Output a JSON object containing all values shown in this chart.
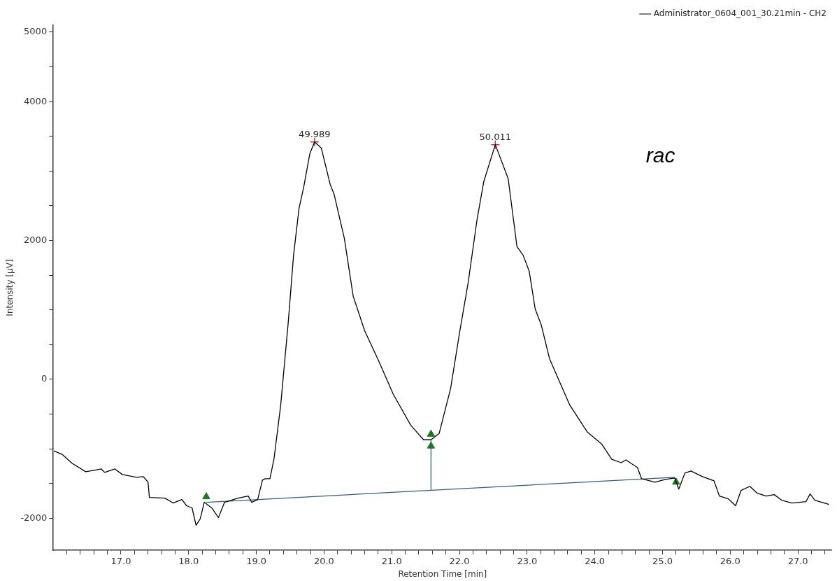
{
  "chart_data": {
    "type": "line",
    "xlabel": "Retention Time [min]",
    "ylabel": "Intensity [µV]",
    "xlim": [
      16,
      27.5
    ],
    "ylim": [
      -2460,
      5100
    ],
    "xticks": [
      {
        "value": 16.2,
        "label": null
      },
      {
        "value": 16.4,
        "label": null
      },
      {
        "value": 16.6,
        "label": null
      },
      {
        "value": 16.8,
        "label": null
      },
      {
        "value": 17,
        "label": "17.0"
      },
      {
        "value": 17.2,
        "label": null
      },
      {
        "value": 17.4,
        "label": null
      },
      {
        "value": 17.6,
        "label": null
      },
      {
        "value": 17.8,
        "label": null
      },
      {
        "value": 18,
        "label": "18.0"
      },
      {
        "value": 18.2,
        "label": null
      },
      {
        "value": 18.4,
        "label": null
      },
      {
        "value": 18.6,
        "label": null
      },
      {
        "value": 18.8,
        "label": null
      },
      {
        "value": 19,
        "label": "19.0"
      },
      {
        "value": 19.2,
        "label": null
      },
      {
        "value": 19.4,
        "label": null
      },
      {
        "value": 19.6,
        "label": null
      },
      {
        "value": 19.8,
        "label": null
      },
      {
        "value": 20,
        "label": "20.0"
      },
      {
        "value": 20.2,
        "label": null
      },
      {
        "value": 20.4,
        "label": null
      },
      {
        "value": 20.6,
        "label": null
      },
      {
        "value": 20.8,
        "label": null
      },
      {
        "value": 21,
        "label": "21.0"
      },
      {
        "value": 21.2,
        "label": null
      },
      {
        "value": 21.4,
        "label": null
      },
      {
        "value": 21.6,
        "label": null
      },
      {
        "value": 21.8,
        "label": null
      },
      {
        "value": 22,
        "label": "22.0"
      },
      {
        "value": 22.2,
        "label": null
      },
      {
        "value": 22.4,
        "label": null
      },
      {
        "value": 22.6,
        "label": null
      },
      {
        "value": 22.8,
        "label": null
      },
      {
        "value": 23,
        "label": "23.0"
      },
      {
        "value": 23.2,
        "label": null
      },
      {
        "value": 23.4,
        "label": null
      },
      {
        "value": 23.6,
        "label": null
      },
      {
        "value": 23.8,
        "label": null
      },
      {
        "value": 24,
        "label": "24.0"
      },
      {
        "value": 24.2,
        "label": null
      },
      {
        "value": 24.4,
        "label": null
      },
      {
        "value": 24.6,
        "label": null
      },
      {
        "value": 24.8,
        "label": null
      },
      {
        "value": 25,
        "label": "25.0"
      },
      {
        "value": 25.2,
        "label": null
      },
      {
        "value": 25.4,
        "label": null
      },
      {
        "value": 25.6,
        "label": null
      },
      {
        "value": 25.8,
        "label": null
      },
      {
        "value": 26,
        "label": "26.0"
      },
      {
        "value": 26.2,
        "label": null
      },
      {
        "value": 26.4,
        "label": null
      },
      {
        "value": 26.6,
        "label": null
      },
      {
        "value": 26.8,
        "label": null
      },
      {
        "value": 27,
        "label": "27.0"
      },
      {
        "value": 27.2,
        "label": null
      },
      {
        "value": 27.4,
        "label": null
      }
    ],
    "yticks": [
      -2000,
      {
        "value": -1500,
        "label": null
      },
      {
        "value": -1000,
        "label": null
      },
      {
        "value": -500,
        "label": null
      },
      0,
      {
        "value": 500,
        "label": null
      },
      {
        "value": 1000,
        "label": null
      },
      {
        "value": 1500,
        "label": null
      },
      2000,
      {
        "value": 2500,
        "label": null
      },
      {
        "value": 3000,
        "label": null
      },
      {
        "value": 3500,
        "label": null
      },
      4000,
      {
        "value": 4500,
        "label": null
      },
      5000
    ],
    "grid": false,
    "legend": "top right",
    "annotations": [
      "rac",
      {
        "text": "49.989",
        "x": 19.86,
        "y": 3420
      },
      {
        "text": "50.011",
        "x": 22.53,
        "y": 3380
      }
    ],
    "series": [
      {
        "name": "Administrator_0604_001_30.21min - CH2",
        "type": "line",
        "color": "#000000",
        "marker": "none",
        "x": [
          16.01,
          16.13,
          16.28,
          16.48,
          16.6,
          16.71,
          16.76,
          16.91,
          17.02,
          17.23,
          17.33,
          17.4,
          17.42,
          17.65,
          17.77,
          17.9,
          17.97,
          18.05,
          18.11,
          18.17,
          18.23,
          18.34,
          18.44,
          18.53,
          18.73,
          18.88,
          18.93,
          19.02,
          19.09,
          19.13,
          19.2,
          19.26,
          19.36,
          19.47,
          19.55,
          19.63,
          19.7,
          19.79,
          19.86,
          19.96,
          20.09,
          20.15,
          20.3,
          20.43,
          20.6,
          20.81,
          21.02,
          21.28,
          21.47,
          21.58,
          21.7,
          21.87,
          22.0,
          22.13,
          22.26,
          22.36,
          22.53,
          22.72,
          22.85,
          22.94,
          23.03,
          23.12,
          23.21,
          23.33,
          23.63,
          23.89,
          24.1,
          24.25,
          24.39,
          24.46,
          24.63,
          24.69,
          24.89,
          25.04,
          25.18,
          25.24,
          25.33,
          25.42,
          25.59,
          25.76,
          25.84,
          25.97,
          26.08,
          26.16,
          26.29,
          26.4,
          26.53,
          26.65,
          26.76,
          26.91,
          27.12,
          27.18,
          27.25,
          27.46
        ],
        "values": [
          -1030,
          -1080,
          -1210,
          -1330,
          -1310,
          -1290,
          -1340,
          -1290,
          -1370,
          -1410,
          -1400,
          -1480,
          -1700,
          -1710,
          -1780,
          -1730,
          -1820,
          -1850,
          -2100,
          -2010,
          -1770,
          -1850,
          -1990,
          -1770,
          -1710,
          -1680,
          -1770,
          -1730,
          -1450,
          -1430,
          -1430,
          -1150,
          -370,
          810,
          1790,
          2460,
          2770,
          3250,
          3420,
          3330,
          2810,
          2660,
          2030,
          1200,
          700,
          260,
          -210,
          -660,
          -870,
          -870,
          -780,
          -130,
          660,
          1400,
          2300,
          2850,
          3380,
          2890,
          1910,
          1790,
          1560,
          1010,
          780,
          300,
          -370,
          -760,
          -930,
          -1150,
          -1200,
          -1160,
          -1270,
          -1430,
          -1480,
          -1440,
          -1420,
          -1580,
          -1350,
          -1320,
          -1400,
          -1460,
          -1680,
          -1720,
          -1820,
          -1600,
          -1540,
          -1640,
          -1680,
          -1660,
          -1740,
          -1780,
          -1760,
          -1650,
          -1740,
          -1800
        ]
      },
      {
        "type": "line",
        "color": "#2f5f7f",
        "marker": "none",
        "x": [
          18.26,
          25.18
        ],
        "values": [
          -1770,
          -1410
        ]
      },
      {
        "type": "line",
        "color": "#2f5f7f",
        "marker": "none",
        "x": [
          21.58,
          21.58
        ],
        "values": [
          -1590,
          -870
        ]
      },
      {
        "type": "scatter",
        "color": "#cc3333",
        "marker": "cross",
        "x": [
          19.86,
          22.53
        ],
        "values": [
          3420,
          3380
        ]
      },
      {
        "type": "scatter",
        "color": "#1a7a1a",
        "marker": "triangle",
        "x": [
          18.26,
          21.58,
          21.58,
          25.2
        ],
        "values": [
          -1690,
          -790,
          -960,
          -1480
        ]
      }
    ]
  }
}
